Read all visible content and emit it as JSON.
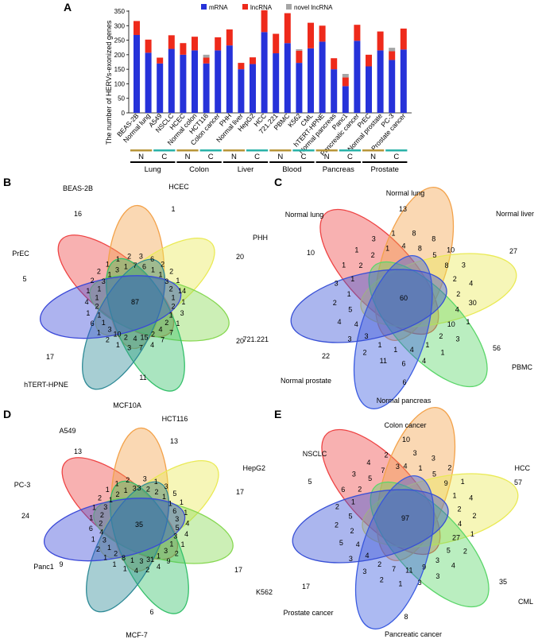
{
  "colors": {
    "mrna": "#2632d9",
    "lncrna": "#ee2a1b",
    "novel": "#a6a6a6",
    "n_bar": "#b8963a",
    "c_bar": "#2ab2a8"
  },
  "panel_a": {
    "letter": "A",
    "nc_labels": {
      "n": "N",
      "c": "C"
    },
    "groups": [
      "Lung",
      "Colon",
      "Liver",
      "Blood",
      "Pancreas",
      "Prostate"
    ]
  },
  "chart_data": [
    {
      "type": "bar",
      "stacked": true,
      "ylabel": "The number of HERVs-exonized genes",
      "ylim": [
        0,
        350
      ],
      "yticks": [
        0,
        50,
        100,
        150,
        200,
        250,
        300,
        350
      ],
      "legend_position": "top",
      "categories": [
        "BEAS-2B",
        "Normal lung",
        "A549",
        "NSCLC",
        "HCEC",
        "Normal colon",
        "HCT116",
        "Colon cancer",
        "PHH",
        "Normal liver",
        "HepG2",
        "HCC",
        "721.221",
        "PBMC",
        "K562",
        "CML",
        "hTERT-HPNE",
        "Normal pancreas",
        "Panc1",
        "Pancreatic cancer",
        "PrEC",
        "Normal prostate",
        "PC-3",
        "Prostate cancer"
      ],
      "series": [
        {
          "name": "mRNA",
          "values": [
            268,
            207,
            170,
            220,
            200,
            215,
            170,
            215,
            232,
            150,
            168,
            278,
            205,
            240,
            172,
            222,
            245,
            150,
            92,
            248,
            160,
            215,
            182,
            218
          ]
        },
        {
          "name": "lncRNA",
          "values": [
            48,
            45,
            20,
            47,
            40,
            47,
            20,
            45,
            55,
            22,
            23,
            75,
            67,
            103,
            42,
            88,
            55,
            38,
            30,
            55,
            40,
            65,
            30,
            72
          ]
        },
        {
          "name": "novel lncRNA",
          "values": [
            0,
            0,
            0,
            0,
            0,
            0,
            10,
            0,
            0,
            0,
            0,
            0,
            0,
            0,
            5,
            0,
            0,
            0,
            12,
            0,
            0,
            0,
            12,
            0
          ]
        }
      ]
    }
  ],
  "venns": [
    {
      "letter": "B",
      "labels": [
        "BEAS-2B",
        "HCEC",
        "PHH",
        "721.221",
        "MCF10A",
        "hTERT-HPNE",
        "PrEC"
      ],
      "unique": [
        "16",
        "1",
        "20",
        "20",
        "11",
        "17",
        "5"
      ],
      "center": "87",
      "small": [
        "7",
        "3",
        "6",
        "6",
        "1",
        "2",
        "1",
        "2",
        "3",
        "1",
        "2",
        "14",
        "1",
        "1",
        "2",
        "3",
        "1",
        "1",
        "2",
        "7",
        "4",
        "7",
        "2",
        "4",
        "15",
        "7",
        "4",
        "3",
        "2",
        "1",
        "10",
        "2",
        "3",
        "1",
        "1",
        "6",
        "1",
        "1",
        "2",
        "4",
        "1",
        "1",
        "1",
        "2",
        "3",
        "2",
        "1",
        "1",
        "3",
        "1",
        "1",
        "2"
      ]
    },
    {
      "letter": "C",
      "labels": [
        "Normal lung",
        "Normal lung",
        "Normal liver",
        "PBMC",
        "Normal pancreas",
        "Normal prostate"
      ],
      "unique": [
        "10",
        "13",
        "27",
        "56",
        "6",
        "22"
      ],
      "center": "60",
      "small": [
        "4",
        "8",
        "8",
        "8",
        "5",
        "10",
        "8",
        "3",
        "2",
        "4",
        "2",
        "30",
        "4",
        "1",
        "10",
        "3",
        "2",
        "1",
        "1",
        "4",
        "4",
        "6",
        "1",
        "11",
        "1",
        "2",
        "3",
        "3",
        "4",
        "4",
        "5",
        "2",
        "1",
        "3",
        "1",
        "1",
        "2",
        "1",
        "2",
        "3",
        "1",
        "1"
      ]
    },
    {
      "letter": "D",
      "labels": [
        "A549",
        "HCT116",
        "HepG2",
        "K562",
        "MCF-7",
        "Panc1",
        "PC-3"
      ],
      "unique": [
        "13",
        "13",
        "17",
        "17",
        "6",
        "9",
        "24"
      ],
      "center": "35",
      "small": [
        "3",
        "3",
        "2",
        "1",
        "2",
        "3",
        "1",
        "5",
        "1",
        "1",
        "6",
        "1",
        "3",
        "4",
        "5",
        "4",
        "3",
        "1",
        "1",
        "2",
        "3",
        "9",
        "1",
        "4",
        "31",
        "2",
        "3",
        "4",
        "1",
        "1",
        "8",
        "1",
        "2",
        "1",
        "1",
        "2",
        "3",
        "1",
        "4",
        "6",
        "2",
        "1",
        "2",
        "1",
        "3",
        "2",
        "1",
        "1",
        "2",
        "1",
        "1",
        "2",
        "3"
      ]
    },
    {
      "letter": "E",
      "labels": [
        "NSCLC",
        "Colon cancer",
        "HCC",
        "CML",
        "Pancreatic cancer",
        "Prostate cancer"
      ],
      "unique": [
        "5",
        "10",
        "57",
        "35",
        "8",
        "17"
      ],
      "center": "97",
      "small": [
        "4",
        "3",
        "1",
        "3",
        "5",
        "2",
        "9",
        "1",
        "1",
        "4",
        "2",
        "2",
        "4",
        "1",
        "27",
        "2",
        "5",
        "4",
        "3",
        "3",
        "9",
        "3",
        "11",
        "1",
        "7",
        "2",
        "2",
        "3",
        "4",
        "3",
        "4",
        "5",
        "2",
        "2",
        "5",
        "2",
        "1",
        "6",
        "2",
        "3",
        "5",
        "4",
        "7",
        "2",
        "3"
      ]
    }
  ]
}
